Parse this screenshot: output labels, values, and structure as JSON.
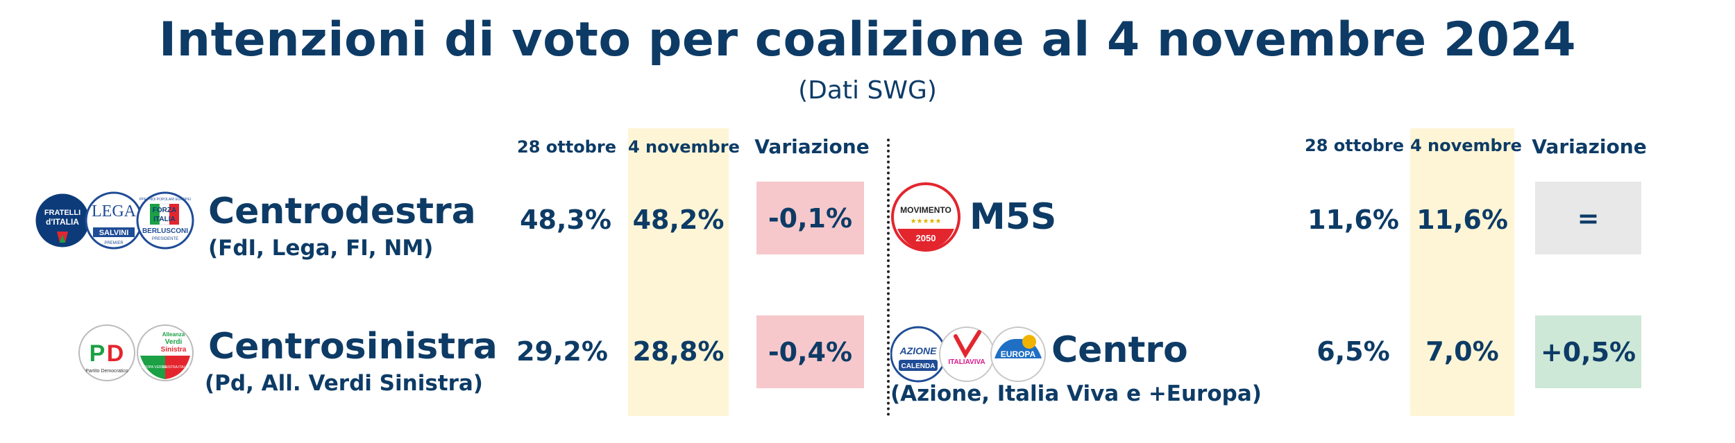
{
  "title": "Intenzioni di voto per coalizione al 4 novembre 2024",
  "subtitle": "(Dati SWG)",
  "colors": {
    "text": "#0d3b66",
    "highlight_column": "#fdf5d5",
    "negative": "#f6c8cb",
    "neutral": "#e8e8e8",
    "positive": "#cde8d6"
  },
  "left": {
    "headers": {
      "prev": "28 ottobre",
      "curr": "4 novembre",
      "var": "Variazione"
    },
    "rows": [
      {
        "name": "Centrodestra",
        "members": "(FdI, Lega, FI, NM)",
        "prev": "48,3%",
        "curr": "48,2%",
        "change": "-0,1%",
        "status": "negative",
        "logos": {
          "fdi": "FRATELLI D'ITALIA",
          "fdi_a": "FRATELLI",
          "fdi_b": "d'ITALIA",
          "lega": "LEGA",
          "lega_sub": "SALVINI",
          "lega_sub2": "PREMIER",
          "fi_a": "FORZA",
          "fi_b": "ITALIA",
          "fi_c": "BERLUSCONI",
          "fi_d": "PRESIDENTE",
          "fi_e": "PPE · NOI POPOLARI EUROPEI"
        }
      },
      {
        "name": "Centrosinistra",
        "members": "(Pd, All. Verdi Sinistra)",
        "prev": "29,2%",
        "curr": "28,8%",
        "change": "-0,4%",
        "status": "negative",
        "logos": {
          "pd": "PD",
          "pd_sub": "Partito Democratico",
          "avs_a": "Alleanza",
          "avs_b": "Verdi",
          "avs_c": "Sinistra",
          "avs_d": "EUROPA VERDE",
          "avs_e": "SINISTRA ITALIANA"
        }
      }
    ]
  },
  "right": {
    "headers": {
      "prev": "28 ottobre",
      "curr": "4 novembre",
      "var": "Variazione"
    },
    "rows": [
      {
        "name": "M5S",
        "members": "",
        "prev": "11,6%",
        "curr": "11,6%",
        "change": "=",
        "status": "neutral",
        "logos": {
          "m5s_a": "MOVIMENTO",
          "m5s_b": "2050"
        }
      },
      {
        "name": "Centro",
        "members": "(Azione, Italia Viva e +Europa)",
        "prev": "6,5%",
        "curr": "7,0%",
        "change": "+0,5%",
        "status": "positive",
        "logos": {
          "az_a": "AZIONE",
          "az_b": "CALENDA",
          "iv": "ITALIAVIVA",
          "eu": "EUROPA"
        }
      }
    ]
  },
  "chart_data": {
    "type": "table",
    "title": "Intenzioni di voto per coalizione al 4 novembre 2024",
    "subtitle": "(Dati SWG)",
    "columns": [
      "28 ottobre",
      "4 novembre",
      "Variazione"
    ],
    "rows": [
      {
        "label": "Centrodestra",
        "28 ottobre": 48.3,
        "4 novembre": 48.2,
        "Variazione": -0.1
      },
      {
        "label": "Centrosinistra",
        "28 ottobre": 29.2,
        "4 novembre": 28.8,
        "Variazione": -0.4
      },
      {
        "label": "M5S",
        "28 ottobre": 11.6,
        "4 novembre": 11.6,
        "Variazione": 0
      },
      {
        "label": "Centro",
        "28 ottobre": 6.5,
        "4 novembre": 7.0,
        "Variazione": 0.5
      }
    ]
  }
}
